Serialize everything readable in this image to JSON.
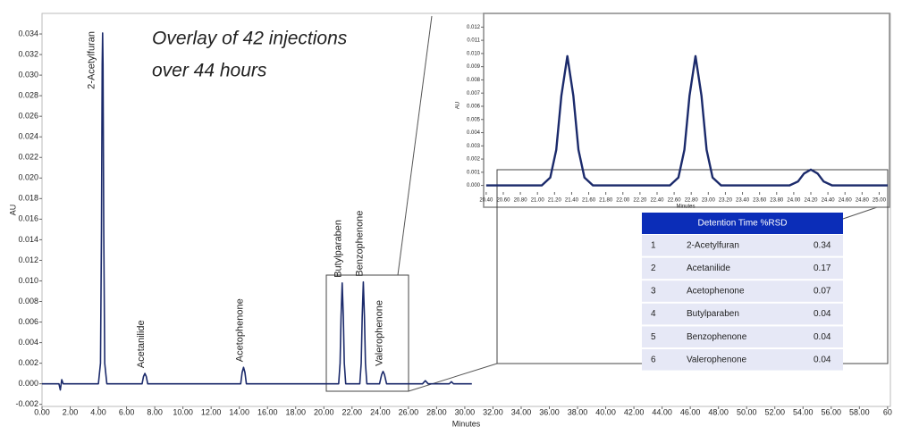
{
  "chart_data": [
    {
      "type": "line",
      "color": "#1b2a6b",
      "xlabel": "Minutes",
      "ylabel": "AU",
      "annotation_lines": [
        "Overlay of 42 injections",
        "over 44 hours"
      ],
      "peak_labels": [
        {
          "text": "2-Acetylfuran",
          "x": 4.3
        },
        {
          "text": "Acetanilide",
          "x": 7.3
        },
        {
          "text": "Acetophenone",
          "x": 14.3
        },
        {
          "text": "Butylparaben",
          "x": 21.3
        },
        {
          "text": "Benzophenone",
          "x": 22.8
        },
        {
          "text": "Valerophenone",
          "x": 24.2
        }
      ],
      "x": [
        0,
        1.2,
        1.3,
        1.4,
        1.5,
        4.0,
        4.15,
        4.22,
        4.27,
        4.3,
        4.33,
        4.38,
        4.45,
        4.6,
        7.1,
        7.2,
        7.3,
        7.4,
        7.5,
        14.1,
        14.2,
        14.3,
        14.4,
        14.5,
        21.05,
        21.15,
        21.22,
        21.3,
        21.38,
        21.45,
        21.55,
        22.55,
        22.65,
        22.72,
        22.8,
        22.88,
        22.95,
        23.05,
        23.95,
        24.1,
        24.2,
        24.3,
        24.45,
        27.0,
        27.2,
        27.4,
        28.9,
        29.05,
        29.2,
        30.5
      ],
      "values": [
        0,
        0,
        -0.0006,
        0.0004,
        0,
        0,
        0.002,
        0.015,
        0.031,
        0.0341,
        0.031,
        0.015,
        0.002,
        0,
        0,
        0.0007,
        0.001,
        0.0007,
        0,
        0,
        0.0011,
        0.0016,
        0.0011,
        0,
        0,
        0.002,
        0.0065,
        0.0098,
        0.0065,
        0.002,
        0,
        0,
        0.002,
        0.0065,
        0.0099,
        0.0065,
        0.002,
        0,
        0,
        0.0009,
        0.0012,
        0.0009,
        0,
        0,
        0.0003,
        0,
        0,
        0.0002,
        0,
        0
      ],
      "xlim": [
        0,
        60.2
      ],
      "ylim": [
        -0.0022,
        0.036
      ],
      "xticks": [
        {
          "value": 0,
          "label": "0.00"
        },
        {
          "value": 2,
          "label": "2.00"
        },
        {
          "value": 4,
          "label": "4.00"
        },
        {
          "value": 6,
          "label": "6.00"
        },
        {
          "value": 8,
          "label": "8.00"
        },
        {
          "value": 10,
          "label": "10.00"
        },
        {
          "value": 12,
          "label": "12.00"
        },
        {
          "value": 14,
          "label": "14.00"
        },
        {
          "value": 16,
          "label": "16.00"
        },
        {
          "value": 18,
          "label": "18.00"
        },
        {
          "value": 20,
          "label": "20.00"
        },
        {
          "value": 22,
          "label": "22.00"
        },
        {
          "value": 24,
          "label": "24.00"
        },
        {
          "value": 26,
          "label": "26.00"
        },
        {
          "value": 28,
          "label": "28.00"
        },
        {
          "value": 30,
          "label": "30.00"
        },
        {
          "value": 32,
          "label": "32.00"
        },
        {
          "value": 34,
          "label": "34.00"
        },
        {
          "value": 36,
          "label": "36.00"
        },
        {
          "value": 38,
          "label": "38.00"
        },
        {
          "value": 40,
          "label": "40.00"
        },
        {
          "value": 42,
          "label": "42.00"
        },
        {
          "value": 44,
          "label": "44.00"
        },
        {
          "value": 46,
          "label": "46.00"
        },
        {
          "value": 48,
          "label": "48.00"
        },
        {
          "value": 50,
          "label": "50.00"
        },
        {
          "value": 52,
          "label": "52.00"
        },
        {
          "value": 54,
          "label": "54.00"
        },
        {
          "value": 56,
          "label": "56.00"
        },
        {
          "value": 58,
          "label": "58.00"
        },
        {
          "value": 60,
          "label": "60"
        }
      ],
      "yticks": [
        -0.002,
        {
          "value": 0,
          "label": "0.000"
        },
        0.002,
        0.004,
        0.006,
        0.008,
        {
          "value": 0.01,
          "label": "0.010"
        },
        0.012,
        0.014,
        0.016,
        0.018,
        {
          "value": 0.02,
          "label": "0.020"
        },
        0.022,
        0.024,
        0.026,
        0.028,
        {
          "value": 0.03,
          "label": "0.030"
        },
        0.032,
        0.034
      ]
    },
    {
      "type": "line",
      "color": "#1b2a6b",
      "xlabel": "Minutes",
      "ylabel": "AU",
      "x": [
        20.4,
        21.05,
        21.15,
        21.22,
        21.28,
        21.35,
        21.42,
        21.48,
        21.55,
        21.65,
        22.55,
        22.65,
        22.72,
        22.78,
        22.85,
        22.92,
        22.98,
        23.05,
        23.15,
        23.95,
        24.05,
        24.12,
        24.2,
        24.28,
        24.35,
        24.45,
        25.1
      ],
      "values": [
        0,
        0,
        0.0006,
        0.0027,
        0.0068,
        0.0098,
        0.0068,
        0.0027,
        0.0006,
        0,
        0,
        0.0006,
        0.0027,
        0.0068,
        0.0098,
        0.0068,
        0.0027,
        0.0006,
        0,
        0,
        0.0003,
        0.0009,
        0.0012,
        0.0009,
        0.0003,
        0,
        0
      ],
      "xlim": [
        20.37,
        25.1
      ],
      "ylim": [
        -0.0005,
        0.0127
      ],
      "xticks": [
        {
          "value": 20.4,
          "label": "20.40"
        },
        {
          "value": 20.6,
          "label": "20.60"
        },
        {
          "value": 20.8,
          "label": "20.80"
        },
        {
          "value": 21,
          "label": "21.00"
        },
        {
          "value": 21.2,
          "label": "21.20"
        },
        {
          "value": 21.4,
          "label": "21.40"
        },
        {
          "value": 21.6,
          "label": "21.60"
        },
        {
          "value": 21.8,
          "label": "21.80"
        },
        {
          "value": 22,
          "label": "22.00"
        },
        {
          "value": 22.2,
          "label": "22.20"
        },
        {
          "value": 22.4,
          "label": "22.40"
        },
        {
          "value": 22.6,
          "label": "22.60"
        },
        {
          "value": 22.8,
          "label": "22.80"
        },
        {
          "value": 23,
          "label": "23.00"
        },
        {
          "value": 23.2,
          "label": "23.20"
        },
        {
          "value": 23.4,
          "label": "23.40"
        },
        {
          "value": 23.6,
          "label": "23.60"
        },
        {
          "value": 23.8,
          "label": "23.80"
        },
        {
          "value": 24,
          "label": "24.00"
        },
        {
          "value": 24.2,
          "label": "24.20"
        },
        {
          "value": 24.4,
          "label": "24.40"
        },
        {
          "value": 24.6,
          "label": "24.60"
        },
        {
          "value": 24.8,
          "label": "24.80"
        },
        {
          "value": 25,
          "label": "25.00"
        }
      ],
      "yticks": [
        {
          "value": 0,
          "label": "0.000"
        },
        0.001,
        0.002,
        0.003,
        0.004,
        0.005,
        0.006,
        0.007,
        0.008,
        0.009,
        {
          "value": 0.01,
          "label": "0.010"
        },
        0.011,
        0.012
      ]
    }
  ],
  "table": {
    "header": "Detention Time %RSD",
    "rows": [
      [
        1,
        "2-Acetylfuran",
        0.34
      ],
      [
        2,
        "Acetanilide",
        0.17
      ],
      [
        3,
        "Acetophenone",
        0.07
      ],
      [
        4,
        "Butylparaben",
        0.04
      ],
      [
        5,
        "Benzophenone",
        0.04
      ],
      [
        6,
        "Valerophenone",
        0.04
      ]
    ]
  }
}
